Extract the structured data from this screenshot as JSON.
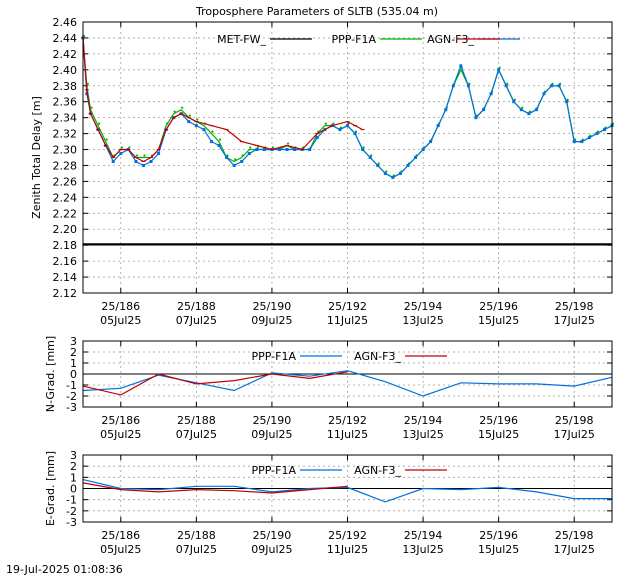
{
  "footer": {
    "timestamp": "19-Jul-2025 01:08:36"
  },
  "chart_data": [
    {
      "type": "line",
      "title": "Troposphere Parameters of SLTB (535.04 m)",
      "ylabel": "Zenith Total Delay [m]",
      "xlabel": "",
      "ylim": [
        2.12,
        2.46
      ],
      "yticks": [
        "2.12",
        "2.14",
        "2.16",
        "2.18",
        "2.20",
        "2.22",
        "2.24",
        "2.26",
        "2.28",
        "2.30",
        "2.32",
        "2.34",
        "2.36",
        "2.38",
        "2.40",
        "2.42",
        "2.44",
        "2.46"
      ],
      "xlim": [
        185,
        199
      ],
      "xticks": [
        {
          "x": 186,
          "doy": "25/186",
          "date": "05Jul25"
        },
        {
          "x": 188,
          "doy": "25/188",
          "date": "07Jul25"
        },
        {
          "x": 190,
          "doy": "25/190",
          "date": "09Jul25"
        },
        {
          "x": 192,
          "doy": "25/192",
          "date": "11Jul25"
        },
        {
          "x": 194,
          "doy": "25/194",
          "date": "13Jul25"
        },
        {
          "x": 196,
          "doy": "25/196",
          "date": "15Jul25"
        },
        {
          "x": 198,
          "doy": "25/198",
          "date": "17Jul25"
        }
      ],
      "grid": true,
      "legend": "top",
      "series": [
        {
          "name": "MET-FW_",
          "color": "#000000",
          "x": [
            185,
            199
          ],
          "y": [
            2.181,
            2.181
          ]
        },
        {
          "name": "PPP-F1A",
          "color": "#00b000",
          "x": [
            185.0,
            185.1,
            185.2,
            185.4,
            185.6,
            185.8,
            186.0,
            186.2,
            186.4,
            186.6,
            186.8,
            187.0,
            187.2,
            187.4,
            187.6,
            187.8,
            188.0,
            188.2,
            188.4,
            188.6,
            188.8,
            189.0,
            189.2,
            189.4,
            189.6,
            189.8,
            190.0,
            190.2,
            190.4,
            190.6,
            190.8,
            191.0,
            191.2,
            191.4,
            191.6,
            191.8,
            192.0,
            192.2,
            192.4,
            192.6,
            192.8,
            193.0,
            193.2,
            193.4,
            193.6,
            193.8,
            194.0,
            194.2,
            194.4,
            194.6,
            194.8,
            195.0,
            195.2,
            195.4,
            195.6,
            195.8,
            196.0,
            196.2,
            196.4,
            196.6,
            196.8,
            197.0,
            197.2,
            197.4,
            197.6,
            197.8,
            198.0,
            198.2,
            198.4,
            198.6,
            198.8,
            199.0
          ],
          "y": [
            2.44,
            2.38,
            2.35,
            2.33,
            2.31,
            2.29,
            2.3,
            2.3,
            2.29,
            2.29,
            2.29,
            2.3,
            2.33,
            2.345,
            2.35,
            2.34,
            2.335,
            2.33,
            2.32,
            2.31,
            2.29,
            2.285,
            2.29,
            2.3,
            2.3,
            2.3,
            2.3,
            2.3,
            2.305,
            2.3,
            2.3,
            2.3,
            2.32,
            2.33,
            2.33,
            2.325,
            2.33,
            2.32,
            2.3,
            2.29,
            2.28,
            2.27,
            2.265,
            2.27,
            2.28,
            2.29,
            2.3,
            2.31,
            2.33,
            2.35,
            2.38,
            2.4,
            2.38,
            2.34,
            2.35,
            2.37,
            2.4,
            2.38,
            2.36,
            2.35,
            2.345,
            2.35,
            2.37,
            2.38,
            2.38,
            2.36,
            2.31,
            2.31,
            2.315,
            2.32,
            2.325,
            2.33
          ]
        },
        {
          "name": "AGN-F3_",
          "color": "#0070e0",
          "x": [
            185.0,
            185.1,
            185.2,
            185.4,
            185.6,
            185.8,
            186.0,
            186.2,
            186.4,
            186.6,
            186.8,
            187.0,
            187.2,
            187.4,
            187.6,
            187.8,
            188.0,
            188.2,
            188.4,
            188.6,
            188.8,
            189.0,
            189.2,
            189.4,
            189.6,
            189.8,
            190.0,
            190.2,
            190.4,
            190.6,
            190.8,
            191.0,
            191.2,
            191.4,
            191.6,
            191.8,
            192.0,
            192.2,
            192.4,
            192.6,
            192.8,
            193.0,
            193.2,
            193.4,
            193.6,
            193.8,
            194.0,
            194.2,
            194.4,
            194.6,
            194.8,
            195.0,
            195.2,
            195.4,
            195.6,
            195.8,
            196.0,
            196.2,
            196.4,
            196.6,
            196.8,
            197.0,
            197.2,
            197.4,
            197.6,
            197.8,
            198.0,
            198.2,
            198.4,
            198.6,
            198.8,
            199.0
          ],
          "y": [
            2.44,
            2.37,
            2.345,
            2.325,
            2.305,
            2.285,
            2.295,
            2.3,
            2.285,
            2.28,
            2.285,
            2.295,
            2.325,
            2.34,
            2.345,
            2.335,
            2.33,
            2.325,
            2.31,
            2.305,
            2.29,
            2.28,
            2.285,
            2.295,
            2.3,
            2.3,
            2.3,
            2.3,
            2.3,
            2.3,
            2.3,
            2.3,
            2.315,
            2.325,
            2.33,
            2.325,
            2.33,
            2.32,
            2.3,
            2.29,
            2.28,
            2.27,
            2.265,
            2.27,
            2.28,
            2.29,
            2.3,
            2.31,
            2.33,
            2.35,
            2.38,
            2.405,
            2.38,
            2.34,
            2.35,
            2.37,
            2.4,
            2.38,
            2.36,
            2.35,
            2.345,
            2.35,
            2.37,
            2.38,
            2.38,
            2.36,
            2.31,
            2.31,
            2.315,
            2.32,
            2.325,
            2.33
          ]
        },
        {
          "name": "",
          "color": "#c00000",
          "x": [
            185.0,
            185.1,
            185.2,
            185.4,
            185.6,
            185.8,
            186.0,
            186.2,
            186.4,
            186.6,
            186.8,
            187.0,
            187.2,
            187.4,
            187.6,
            187.8,
            188.0,
            188.4,
            188.8,
            189.2,
            189.6,
            190.0,
            190.4,
            190.8,
            191.2,
            191.6,
            192.0,
            192.2,
            192.4
          ],
          "y": [
            2.44,
            2.375,
            2.345,
            2.325,
            2.305,
            2.29,
            2.3,
            2.3,
            2.29,
            2.285,
            2.29,
            2.3,
            2.325,
            2.34,
            2.345,
            2.34,
            2.335,
            2.33,
            2.325,
            2.31,
            2.305,
            2.3,
            2.305,
            2.3,
            2.32,
            2.33,
            2.335,
            2.33,
            2.325
          ]
        }
      ]
    },
    {
      "type": "line",
      "ylabel": "N-Grad. [mm]",
      "xlabel": "",
      "ylim": [
        -3,
        3
      ],
      "yticks": [
        "-3",
        "-2",
        "-1",
        "0",
        "1",
        "2",
        "3"
      ],
      "xlim": [
        185,
        199
      ],
      "xticks": [
        {
          "x": 186,
          "doy": "25/186",
          "date": "05Jul25"
        },
        {
          "x": 188,
          "doy": "25/188",
          "date": "07Jul25"
        },
        {
          "x": 190,
          "doy": "25/190",
          "date": "09Jul25"
        },
        {
          "x": 192,
          "doy": "25/192",
          "date": "11Jul25"
        },
        {
          "x": 194,
          "doy": "25/194",
          "date": "13Jul25"
        },
        {
          "x": 196,
          "doy": "25/196",
          "date": "15Jul25"
        },
        {
          "x": 198,
          "doy": "25/198",
          "date": "17Jul25"
        }
      ],
      "grid": true,
      "legend": "top",
      "zero_line": true,
      "series": [
        {
          "name": "PPP-F1A",
          "color": "#0070e0",
          "x": [
            185,
            186,
            187,
            188,
            189,
            190,
            191,
            192,
            193,
            194,
            195,
            196,
            197,
            198,
            199
          ],
          "y": [
            -1.5,
            -1.3,
            -0.1,
            -0.8,
            -1.5,
            0.1,
            -0.2,
            0.3,
            -0.7,
            -2.0,
            -0.8,
            -0.9,
            -0.9,
            -1.1,
            -0.3
          ]
        },
        {
          "name": "AGN-F3_",
          "color": "#c00000",
          "x": [
            185,
            186,
            187,
            188,
            189,
            190,
            191,
            192
          ],
          "y": [
            -1.1,
            -1.9,
            0.0,
            -0.9,
            -0.6,
            0.0,
            -0.4,
            0.2
          ]
        }
      ]
    },
    {
      "type": "line",
      "ylabel": "E-Grad. [mm]",
      "xlabel": "",
      "ylim": [
        -3,
        3
      ],
      "yticks": [
        "-3",
        "-2",
        "-1",
        "0",
        "1",
        "2",
        "3"
      ],
      "xlim": [
        185,
        199
      ],
      "xticks": [
        {
          "x": 186,
          "doy": "25/186",
          "date": "05Jul25"
        },
        {
          "x": 188,
          "doy": "25/188",
          "date": "07Jul25"
        },
        {
          "x": 190,
          "doy": "25/190",
          "date": "09Jul25"
        },
        {
          "x": 192,
          "doy": "25/192",
          "date": "11Jul25"
        },
        {
          "x": 194,
          "doy": "25/194",
          "date": "13Jul25"
        },
        {
          "x": 196,
          "doy": "25/196",
          "date": "15Jul25"
        },
        {
          "x": 198,
          "doy": "25/198",
          "date": "17Jul25"
        }
      ],
      "grid": true,
      "legend": "top",
      "zero_line": true,
      "series": [
        {
          "name": "PPP-F1A",
          "color": "#0070e0",
          "x": [
            185,
            186,
            187,
            188,
            189,
            190,
            191,
            192,
            193,
            194,
            195,
            196,
            197,
            198,
            199
          ],
          "y": [
            0.8,
            0.0,
            -0.1,
            0.2,
            0.2,
            -0.3,
            0.0,
            0.1,
            -1.2,
            0.0,
            -0.1,
            0.1,
            -0.3,
            -0.9,
            -0.9
          ]
        },
        {
          "name": "AGN-F3_",
          "color": "#c00000",
          "x": [
            185,
            186,
            187,
            188,
            189,
            190,
            191,
            192
          ],
          "y": [
            0.5,
            -0.1,
            -0.3,
            -0.1,
            -0.2,
            -0.4,
            -0.1,
            0.2
          ]
        }
      ]
    }
  ]
}
